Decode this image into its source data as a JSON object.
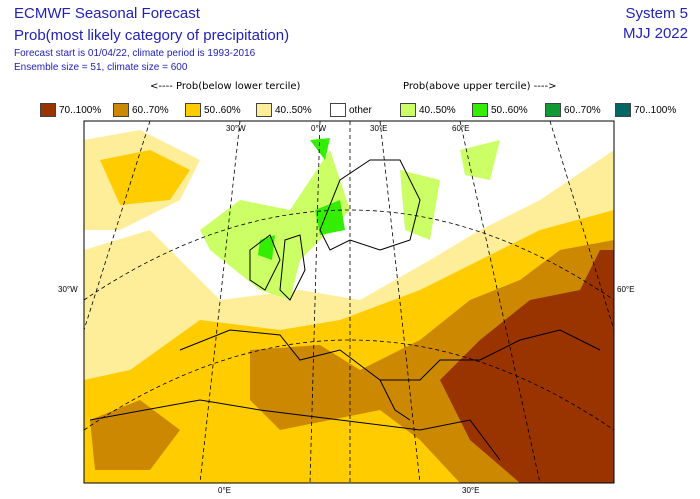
{
  "header": {
    "title": "ECMWF Seasonal Forecast",
    "subtitle": "Prob(most likely category of precipitation)",
    "forecast_info": "Forecast start is 01/04/22, climate period is 1993-2016",
    "ensemble_info": "Ensemble size = 51, climate size = 600",
    "system": "System 5",
    "period": "MJJ 2022"
  },
  "legend": {
    "below_heading": "<---- Prob(below lower tercile)",
    "above_heading": "Prob(above upper tercile) ---->",
    "items": [
      {
        "label": "70..100%",
        "color": "#993300"
      },
      {
        "label": "60..70%",
        "color": "#cc8800"
      },
      {
        "label": "50..60%",
        "color": "#ffcc00"
      },
      {
        "label": "40..50%",
        "color": "#ffee99"
      },
      {
        "label": "other",
        "color": "#ffffff"
      },
      {
        "label": "40..50%",
        "color": "#ccff66"
      },
      {
        "label": "50..60%",
        "color": "#33ee00"
      },
      {
        "label": "60..70%",
        "color": "#119933"
      },
      {
        "label": "70..100%",
        "color": "#006666"
      }
    ]
  },
  "map": {
    "labels": {
      "top": [
        "30°W",
        "0°W",
        "30°E",
        "60°E"
      ],
      "left": "30°W",
      "right": "60°E",
      "bottom": [
        "0°E",
        "30°E"
      ]
    }
  }
}
